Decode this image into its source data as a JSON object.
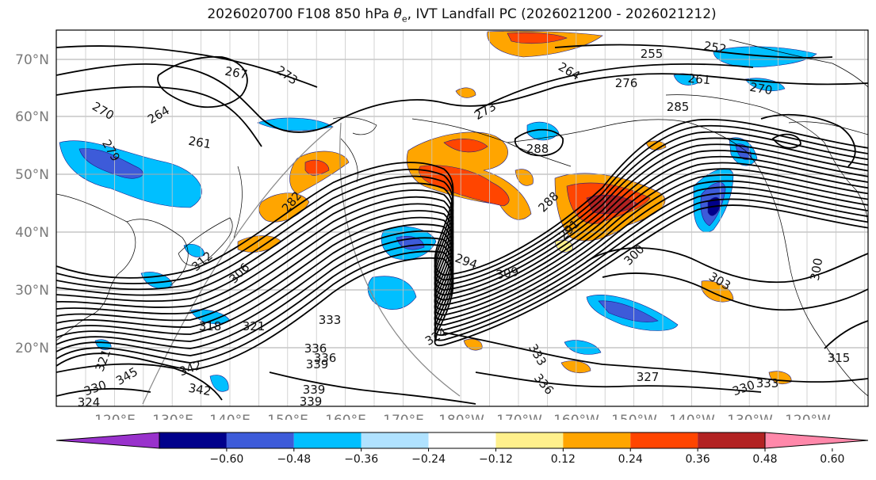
{
  "figure": {
    "title_prefix": "2026020700 F108 850 hPa ",
    "title_theta": "θ",
    "title_sub": "e",
    "title_suffix": ", IVT Landfall PC (2026021200 - 2026021212)"
  },
  "map": {
    "lat_labels": [
      "70°N",
      "60°N",
      "50°N",
      "40°N",
      "30°N",
      "20°N"
    ],
    "lon_labels": [
      "120°E",
      "130°E",
      "140°E",
      "150°E",
      "160°E",
      "170°E",
      "180°W",
      "170°W",
      "160°W",
      "150°W",
      "140°W",
      "130°W",
      "120°W"
    ],
    "contour_labels": [
      "255",
      "252",
      "267",
      "273",
      "264",
      "270",
      "261",
      "279",
      "264",
      "261",
      "270",
      "276",
      "273",
      "285",
      "288",
      "288",
      "282",
      "291",
      "294",
      "306",
      "300",
      "303",
      "300",
      "312",
      "309",
      "318",
      "321",
      "333",
      "324",
      "330",
      "336",
      "339",
      "339",
      "336",
      "333",
      "336",
      "342",
      "345",
      "342",
      "339",
      "327",
      "330",
      "333",
      "315",
      "321",
      "324"
    ]
  },
  "colorbar": {
    "tick_labels": [
      "−0.60",
      "−0.48",
      "−0.36",
      "−0.24",
      "−0.12",
      "0.12",
      "0.24",
      "0.36",
      "0.48",
      "0.60"
    ],
    "colors": [
      "#9932cc",
      "#00008b",
      "#3d5bd9",
      "#00bfff",
      "#b0e2ff",
      "#ffffff",
      "#fff08c",
      "#ffa500",
      "#ff4500",
      "#b22222",
      "#ff88aa"
    ]
  },
  "shading_colors": {
    "neg_strong": "#00008b",
    "neg_mid": "#3d5bd9",
    "neg_light": "#00bfff",
    "neg_faint": "#b0e2ff",
    "pos_faint": "#fff08c",
    "pos_light": "#ffa500",
    "pos_mid": "#ff4500",
    "pos_strong": "#b22222"
  }
}
